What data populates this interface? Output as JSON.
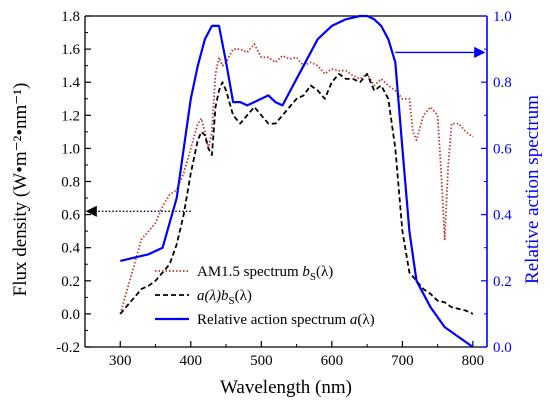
{
  "chart_data": {
    "type": "line",
    "title": "",
    "xlabel": "Wavelength (nm)",
    "ylabel_left": "Flux density (W•m⁻²•nm⁻¹)",
    "ylabel_right": "Relative action spectrum",
    "xlim": [
      250,
      820
    ],
    "ylim_left": [
      -0.2,
      1.8
    ],
    "ylim_right": [
      0.0,
      1.0
    ],
    "x_ticks": [
      300,
      400,
      500,
      600,
      700,
      800
    ],
    "y_ticks_left": [
      -0.2,
      0.0,
      0.2,
      0.4,
      0.6,
      0.8,
      1.0,
      1.2,
      1.4,
      1.6,
      1.8
    ],
    "y_ticks_right": [
      0.0,
      0.2,
      0.4,
      0.6,
      0.8,
      1.0
    ],
    "x_tick_labels": [
      "300",
      "400",
      "500",
      "600",
      "700",
      "800"
    ],
    "y_tick_labels_left": [
      "-0.2",
      "0.0",
      "0.2",
      "0.4",
      "0.6",
      "0.8",
      "1.0",
      "1.2",
      "1.4",
      "1.6",
      "1.8"
    ],
    "y_tick_labels_right": [
      "0.0",
      "0.2",
      "0.4",
      "0.6",
      "0.8",
      "1.0"
    ],
    "grid": false,
    "legend_position": "bottom-left",
    "right_axis_color": "#0000ff",
    "series": [
      {
        "name": "AM1.5 spectrum b_S(λ)",
        "axis": "left",
        "color": "#c0392b",
        "style": "dotted",
        "x": [
          300,
          310,
          320,
          330,
          340,
          350,
          360,
          370,
          380,
          390,
          400,
          410,
          415,
          420,
          425,
          430,
          435,
          440,
          445,
          450,
          460,
          470,
          480,
          490,
          500,
          510,
          520,
          530,
          540,
          550,
          560,
          570,
          580,
          590,
          600,
          610,
          620,
          630,
          640,
          650,
          660,
          670,
          680,
          690,
          700,
          710,
          715,
          720,
          730,
          740,
          750,
          755,
          760,
          765,
          770,
          780,
          790,
          800
        ],
        "y": [
          0.0,
          0.15,
          0.3,
          0.45,
          0.5,
          0.55,
          0.65,
          0.72,
          0.75,
          0.85,
          1.0,
          1.15,
          1.18,
          1.1,
          1.0,
          1.1,
          1.45,
          1.55,
          1.5,
          1.52,
          1.6,
          1.6,
          1.58,
          1.63,
          1.55,
          1.55,
          1.52,
          1.56,
          1.54,
          1.55,
          1.5,
          1.52,
          1.5,
          1.45,
          1.48,
          1.47,
          1.47,
          1.44,
          1.42,
          1.45,
          1.38,
          1.42,
          1.38,
          1.35,
          1.3,
          1.3,
          1.1,
          1.05,
          1.2,
          1.25,
          1.2,
          0.85,
          0.45,
          0.9,
          1.15,
          1.15,
          1.1,
          1.07
        ]
      },
      {
        "name": "a(λ)b_S(λ)",
        "axis": "left",
        "color": "#000000",
        "style": "dashed",
        "x": [
          300,
          310,
          320,
          330,
          340,
          350,
          360,
          370,
          380,
          390,
          400,
          410,
          415,
          420,
          425,
          430,
          435,
          440,
          445,
          450,
          460,
          470,
          480,
          490,
          500,
          510,
          520,
          530,
          540,
          550,
          560,
          570,
          580,
          590,
          600,
          610,
          620,
          630,
          640,
          650,
          660,
          670,
          680,
          690,
          700,
          710,
          720,
          730,
          740,
          750,
          760,
          770,
          780,
          790,
          800
        ],
        "y": [
          0.0,
          0.05,
          0.1,
          0.15,
          0.17,
          0.2,
          0.25,
          0.3,
          0.42,
          0.6,
          0.85,
          1.05,
          1.1,
          1.08,
          1.0,
          0.96,
          1.25,
          1.35,
          1.4,
          1.35,
          1.2,
          1.15,
          1.2,
          1.25,
          1.2,
          1.15,
          1.15,
          1.2,
          1.25,
          1.3,
          1.32,
          1.38,
          1.35,
          1.3,
          1.4,
          1.45,
          1.42,
          1.42,
          1.4,
          1.45,
          1.35,
          1.38,
          1.3,
          1.0,
          0.5,
          0.25,
          0.2,
          0.15,
          0.12,
          0.08,
          0.07,
          0.04,
          0.03,
          0.02,
          0.0
        ]
      },
      {
        "name": "Relative action spectrum a(λ)",
        "axis": "right",
        "color": "#0000ff",
        "style": "solid",
        "x": [
          300,
          320,
          340,
          360,
          380,
          400,
          410,
          420,
          430,
          440,
          450,
          460,
          470,
          480,
          490,
          500,
          510,
          520,
          530,
          540,
          560,
          580,
          600,
          620,
          640,
          650,
          660,
          670,
          680,
          690,
          700,
          710,
          720,
          740,
          760,
          780,
          800
        ],
        "y": [
          0.26,
          0.27,
          0.28,
          0.3,
          0.45,
          0.75,
          0.85,
          0.93,
          0.97,
          0.97,
          0.86,
          0.74,
          0.74,
          0.73,
          0.74,
          0.75,
          0.76,
          0.74,
          0.73,
          0.77,
          0.85,
          0.93,
          0.97,
          0.99,
          1.0,
          1.0,
          0.99,
          0.97,
          0.93,
          0.86,
          0.6,
          0.35,
          0.2,
          0.12,
          0.06,
          0.03,
          0.0
        ]
      }
    ],
    "annotations": [
      {
        "type": "arrow",
        "axis": "left",
        "from_x": 400,
        "to_x": 250,
        "y": 0.62,
        "style": "dotted"
      },
      {
        "type": "arrow",
        "axis": "right",
        "from_x": 690,
        "to_x": 820,
        "y": 0.89,
        "color": "#0000ff"
      }
    ]
  },
  "legend": {
    "items": [
      {
        "prefix": "AM1.5 spectrum ",
        "symbol": "b",
        "sub": "S",
        "suffix": "(λ)"
      },
      {
        "prefix": "",
        "symbol": "a(λ)b",
        "sub": "S",
        "suffix": "(λ)"
      },
      {
        "prefix": "Relative action spectrum ",
        "symbol": "a",
        "sub": "",
        "suffix": "(λ)"
      }
    ]
  }
}
